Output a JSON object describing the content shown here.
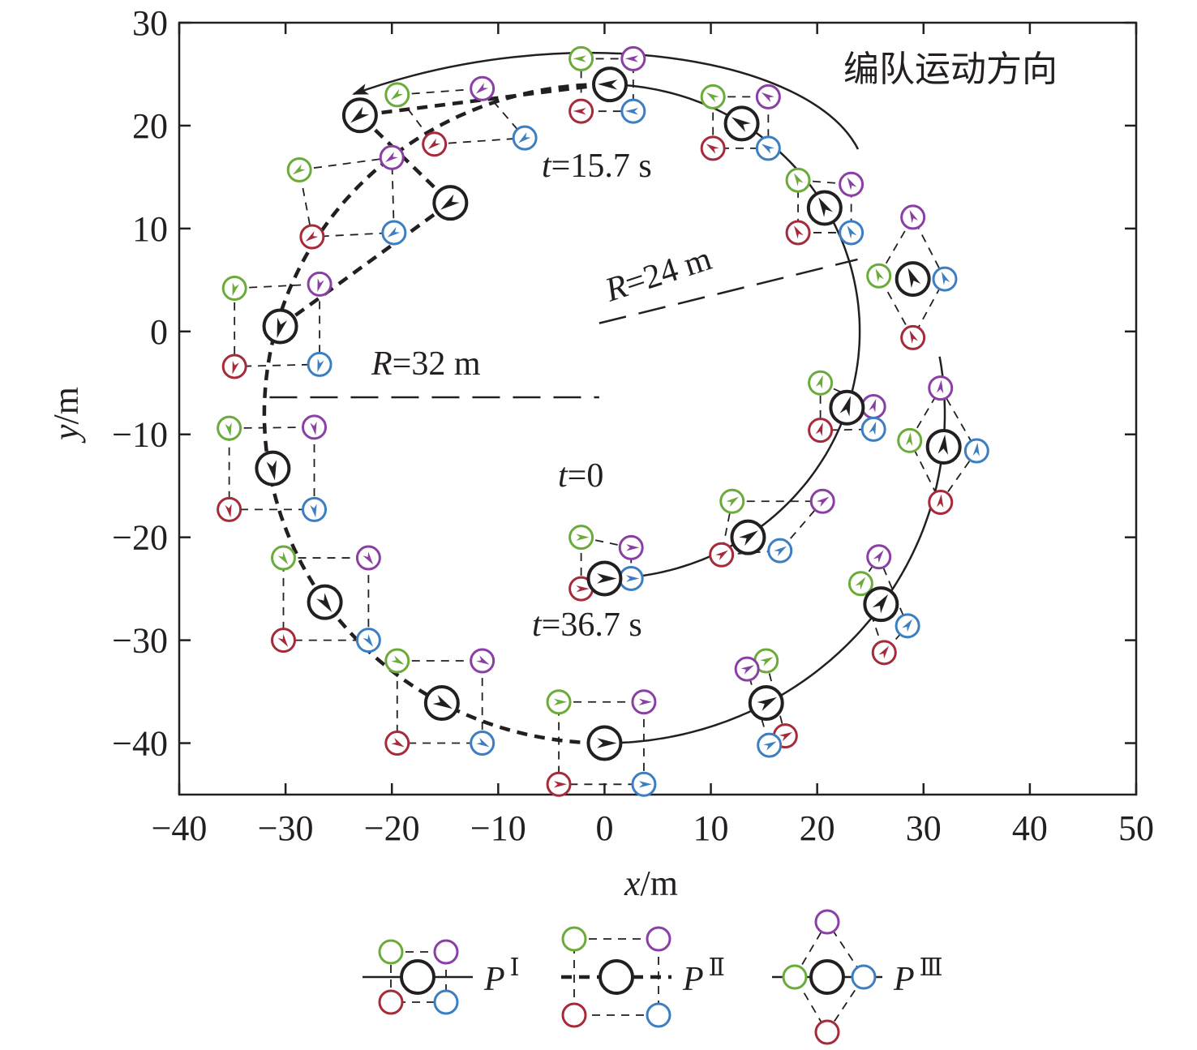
{
  "chart_data": {
    "type": "scatter",
    "title": "",
    "xlabel": "x/m",
    "ylabel": "y/m",
    "xlim": [
      -40,
      50
    ],
    "ylim": [
      -45,
      30
    ],
    "x_ticks": [
      -40,
      -30,
      -20,
      -10,
      0,
      10,
      20,
      30,
      40,
      50
    ],
    "y_ticks": [
      30,
      20,
      10,
      0,
      -10,
      -20,
      -30,
      -40
    ],
    "grid": false,
    "legend_placement": "bottom",
    "legend": [
      {
        "key": "I",
        "label": "P",
        "sup": "Ⅰ",
        "style": "solid"
      },
      {
        "key": "II",
        "label": "P",
        "sup": "Ⅱ",
        "style": "dashed"
      },
      {
        "key": "III",
        "label": "P",
        "sup": "Ⅲ",
        "style": "solid"
      }
    ],
    "annotations": {
      "direction": "编队运动方向",
      "t0": {
        "italic": "t",
        "rest": "=0"
      },
      "t1": {
        "italic": "t",
        "rest": "=15.7 s"
      },
      "t2": {
        "italic": "t",
        "rest": "=36.7 s"
      },
      "r24": {
        "italic": "R",
        "rest": "=24 m"
      },
      "r32": {
        "italic": "R",
        "rest": "=32 m"
      }
    },
    "colors": {
      "leader": "#231f20",
      "green": "#6aab3a",
      "purple": "#8a3fa5",
      "red": "#a52a3a",
      "blue": "#3b7ec2"
    },
    "paths": [
      {
        "name": "circle-R24",
        "style": "solid",
        "center": [
          0,
          0
        ],
        "radius": 24,
        "from_deg": -90,
        "to_deg": 90
      },
      {
        "name": "circle-R32-upper",
        "style": "solid",
        "center": [
          0,
          -8
        ],
        "radius": 32,
        "from_deg": -90,
        "to_deg": 10
      },
      {
        "name": "circle-R32-lower",
        "style": "dashed",
        "center": [
          0,
          -8
        ],
        "radius": 32,
        "from_deg": 90,
        "to_deg": 270
      },
      {
        "name": "connector",
        "style": "dashed",
        "points": [
          [
            0,
            24
          ],
          [
            -23,
            21
          ],
          [
            -14.5,
            12.5
          ],
          [
            -30.5,
            0.5
          ]
        ]
      }
    ],
    "formations": [
      {
        "type": "I",
        "leader": [
          0,
          -24
        ],
        "green": [
          -2.2,
          -20
        ],
        "purple": [
          2.5,
          -21
        ],
        "red": [
          -2.2,
          -25
        ],
        "blue": [
          2.5,
          -24
        ]
      },
      {
        "type": "I",
        "leader": [
          13.5,
          -20
        ],
        "green": [
          12,
          -16.5
        ],
        "purple": [
          20.5,
          -16.5
        ],
        "red": [
          11,
          -21.7
        ],
        "blue": [
          16.5,
          -21.3
        ]
      },
      {
        "type": "I",
        "leader": [
          22.8,
          -7.4
        ],
        "green": [
          20.3,
          -5
        ],
        "purple": [
          25.3,
          -7.3
        ],
        "red": [
          20.3,
          -9.6
        ],
        "blue": [
          25.3,
          -9.5
        ]
      },
      {
        "type": "I",
        "leader": [
          20.7,
          12
        ],
        "green": [
          18.2,
          14.7
        ],
        "purple": [
          23.2,
          14.3
        ],
        "red": [
          18.2,
          9.6
        ],
        "blue": [
          23.2,
          9.6
        ]
      },
      {
        "type": "I",
        "leader": [
          12.9,
          20.2
        ],
        "green": [
          10.2,
          22.8
        ],
        "purple": [
          15.4,
          22.8
        ],
        "red": [
          10.2,
          17.8
        ],
        "blue": [
          15.4,
          17.8
        ]
      },
      {
        "type": "I",
        "leader": [
          0.5,
          24
        ],
        "green": [
          -2.2,
          26.5
        ],
        "purple": [
          2.7,
          26.5
        ],
        "red": [
          -2.2,
          21.4
        ],
        "blue": [
          2.7,
          21.4
        ]
      },
      {
        "type": "II",
        "leader": [
          -23,
          21
        ],
        "green": [
          -19.5,
          23
        ],
        "purple": [
          -11.5,
          23.6
        ],
        "red": [
          -16,
          18.2
        ],
        "blue": [
          -7.5,
          18.8
        ]
      },
      {
        "type": "II",
        "leader": [
          -14.5,
          12.5
        ],
        "green": [
          -28.7,
          15.7
        ],
        "purple": [
          -20,
          16.9
        ],
        "red": [
          -27.5,
          9.2
        ],
        "blue": [
          -19.8,
          9.6
        ]
      },
      {
        "type": "II",
        "leader": [
          -30.5,
          0.5
        ],
        "green": [
          -34.8,
          4.2
        ],
        "purple": [
          -26.8,
          4.6
        ],
        "red": [
          -34.8,
          -3.4
        ],
        "blue": [
          -26.8,
          -3.2
        ]
      },
      {
        "type": "II",
        "leader": [
          -31.2,
          -13.3
        ],
        "green": [
          -35.3,
          -9.4
        ],
        "purple": [
          -27.3,
          -9.3
        ],
        "red": [
          -35.3,
          -17.3
        ],
        "blue": [
          -27.3,
          -17.3
        ]
      },
      {
        "type": "II",
        "leader": [
          -26.3,
          -26.3
        ],
        "green": [
          -30.2,
          -22
        ],
        "purple": [
          -22.2,
          -22
        ],
        "red": [
          -30.2,
          -30
        ],
        "blue": [
          -22.2,
          -30
        ]
      },
      {
        "type": "II",
        "leader": [
          -15.3,
          -36.1
        ],
        "green": [
          -19.5,
          -32
        ],
        "purple": [
          -11.5,
          -32
        ],
        "red": [
          -19.5,
          -40
        ],
        "blue": [
          -11.5,
          -40
        ]
      },
      {
        "type": "II",
        "leader": [
          0,
          -40
        ],
        "green": [
          -4.3,
          -36
        ],
        "purple": [
          3.7,
          -36
        ],
        "red": [
          -4.3,
          -44
        ],
        "blue": [
          3.7,
          -44
        ]
      },
      {
        "type": "III",
        "leader": [
          15.2,
          -36.1
        ],
        "green": [
          15.2,
          -32
        ],
        "purple": [
          13.4,
          -32.8
        ],
        "red": [
          17,
          -39.3
        ],
        "blue": [
          15.5,
          -40.2
        ]
      },
      {
        "type": "III",
        "leader": [
          26,
          -26.5
        ],
        "green": [
          24.1,
          -24.5
        ],
        "purple": [
          25.8,
          -21.9
        ],
        "red": [
          26.3,
          -31.2
        ],
        "blue": [
          28.5,
          -28.6
        ]
      },
      {
        "type": "III",
        "leader": [
          31.9,
          -11.2
        ],
        "green": [
          28.7,
          -10.6
        ],
        "purple": [
          31.6,
          -5.5
        ],
        "red": [
          31.6,
          -16.6
        ],
        "blue": [
          35,
          -11.6
        ]
      },
      {
        "type": "III",
        "leader": [
          29,
          5.1
        ],
        "green": [
          25.8,
          5.4
        ],
        "purple": [
          29,
          11.1
        ],
        "red": [
          29,
          -0.6
        ],
        "blue": [
          32,
          5.1
        ]
      }
    ]
  }
}
